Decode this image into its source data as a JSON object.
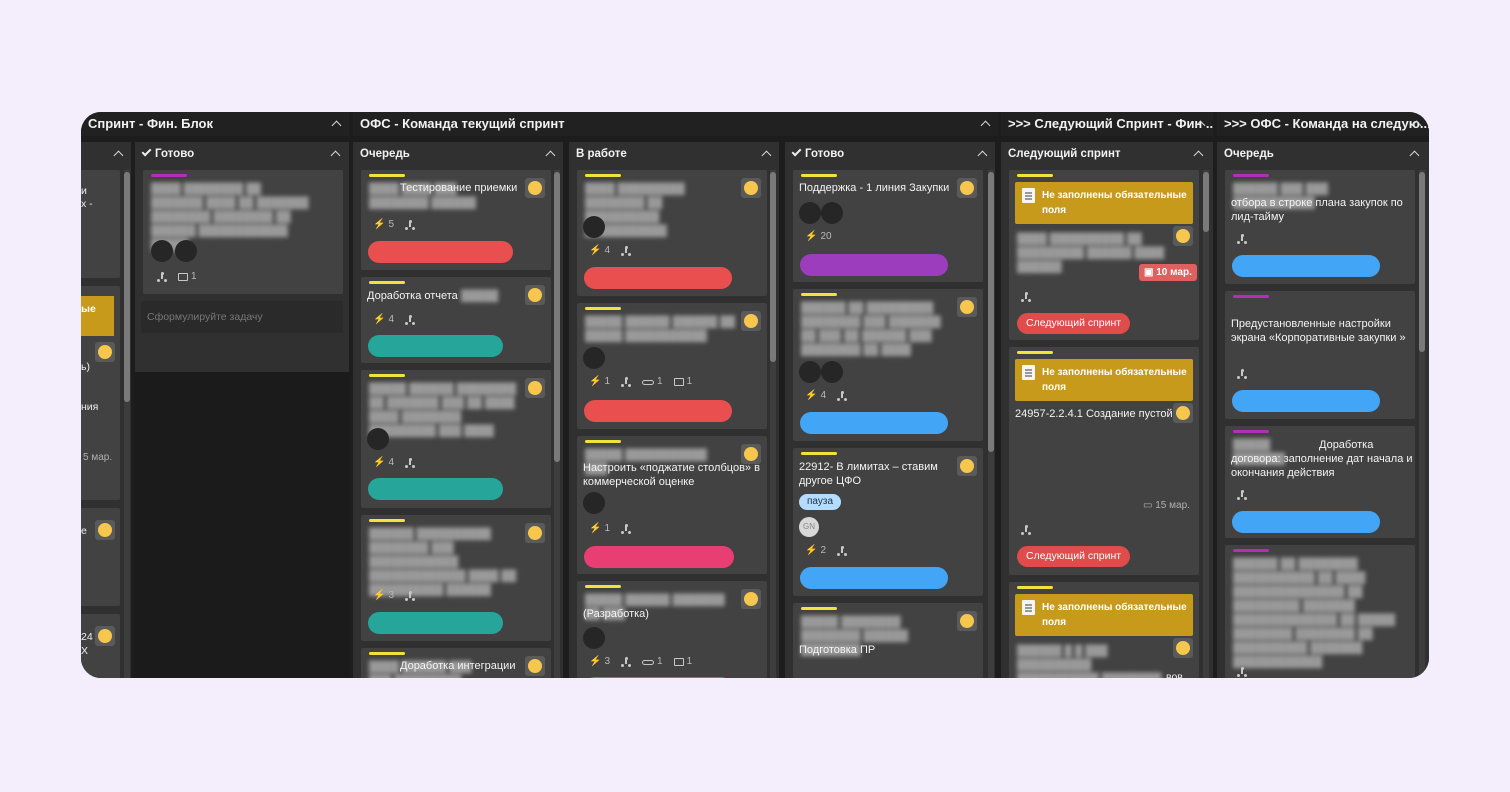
{
  "groups": {
    "fin_sprint": "Спринт - Фин. Блок",
    "ofs_current": "ОФС - Команда текущий спринт",
    "next_fin": ">>> Следующий Спринт - Фин ...",
    "next_ofs": ">>> ОФС - Команда на следую..."
  },
  "columns": {
    "fin_done": "Готово",
    "queue": "Очередь",
    "in_work": "В работе",
    "done": "Готово",
    "next_sprint": "Следующий спринт",
    "queue2": "Очередь"
  },
  "fin_partial": {
    "t1": "и",
    "t2": "х -",
    "warn": "ые",
    "t3": "ь)",
    "t4": "ния",
    "date": "5 мар.",
    "t5": "е",
    "t6": "24",
    "t7": "Х"
  },
  "fin_done": {
    "card_meta_comments": "1",
    "placeholder": "Сформулируйте задачу"
  },
  "queue_cards": [
    {
      "title": "Тестирование приемки",
      "points": "5"
    },
    {
      "title": "Доработка отчета",
      "points": "4"
    },
    {
      "title": "",
      "points": "4"
    },
    {
      "title": "",
      "points": "3"
    },
    {
      "title": "Доработка интеграции"
    }
  ],
  "work_cards": [
    {
      "title": "",
      "points": "4"
    },
    {
      "title": "",
      "points": "1",
      "attachments": "1",
      "comments": "1"
    },
    {
      "title": "Настроить «поджатие столбцов» в коммерческой оценке",
      "points": "1"
    },
    {
      "title": "(Разработка)",
      "points": "3",
      "attachments": "1",
      "comments": "1"
    }
  ],
  "done_cards": [
    {
      "title": "Поддержка - 1 линия Закупки",
      "points": "20"
    },
    {
      "title": "",
      "points": "4"
    },
    {
      "title": "22912- В лимитах – ставим другое ЦФО",
      "tag": "пауза",
      "avatar": "GN",
      "points": "2"
    },
    {
      "title": "Подготовка ПР"
    }
  ],
  "next_cards": [
    {
      "warning": "Не заполнены обязательные поля",
      "date": "10 мар.",
      "status": "Следующий спринт"
    },
    {
      "warning": "Не заполнены обязательные поля",
      "title": "24957-2.2.4.1 Создание пустой",
      "date": "15 мар.",
      "status": "Следующий спринт"
    },
    {
      "warning": "Не заполнены обязательные поля",
      "tail": "вов"
    }
  ],
  "queue2_cards": [
    {
      "title": "отбора в строке плана закупок по лид-тайму"
    },
    {
      "title": "Предустановленные настройки экрана «Корпоративные закупки »"
    },
    {
      "title": "Доработка договора: заполнение дат начала и окончания действия"
    },
    {
      "title": ""
    }
  ],
  "colors": {
    "red": "#e94f4f",
    "teal": "#26a69a",
    "purple": "#9c3dbd",
    "blue": "#42a5f5",
    "pink": "#e83e74",
    "yellow_stripe": "#f1e33c",
    "purple_stripe": "#b32fb8",
    "warning": "#c79a1c"
  }
}
